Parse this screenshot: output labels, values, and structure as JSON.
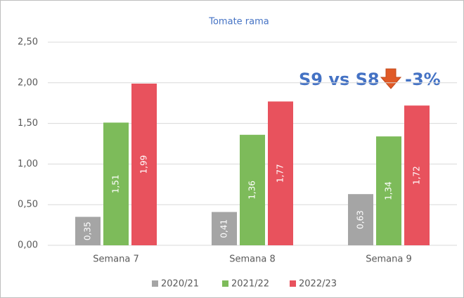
{
  "chart_data": {
    "type": "bar",
    "title": "Tomate rama",
    "categories": [
      "Semana 7",
      "Semana 8",
      "Semana 9"
    ],
    "series": [
      {
        "name": "2020/21",
        "color": "#a5a5a5",
        "values": [
          0.35,
          0.41,
          0.63
        ],
        "value_labels": [
          "0,35",
          "0,41",
          "0,63"
        ]
      },
      {
        "name": "2021/22",
        "color": "#7dbb5a",
        "values": [
          1.51,
          1.36,
          1.34
        ],
        "value_labels": [
          "1,51",
          "1,36",
          "1,34"
        ]
      },
      {
        "name": "2022/23",
        "color": "#e8525d",
        "values": [
          1.99,
          1.77,
          1.72
        ],
        "value_labels": [
          "1,99",
          "1,77",
          "1,72"
        ]
      }
    ],
    "ylim": [
      0,
      2.5
    ],
    "yticks": [
      {
        "value": 0,
        "label": "0,00"
      },
      {
        "value": 0.5,
        "label": "0,50"
      },
      {
        "value": 1,
        "label": "1,00"
      },
      {
        "value": 1.5,
        "label": "1,50"
      },
      {
        "value": 2,
        "label": "2,00"
      },
      {
        "value": 2.5,
        "label": "2,50"
      }
    ],
    "grid": true,
    "legend": "bottom",
    "annotations": [
      "S9 vs S8",
      "-3%"
    ]
  }
}
